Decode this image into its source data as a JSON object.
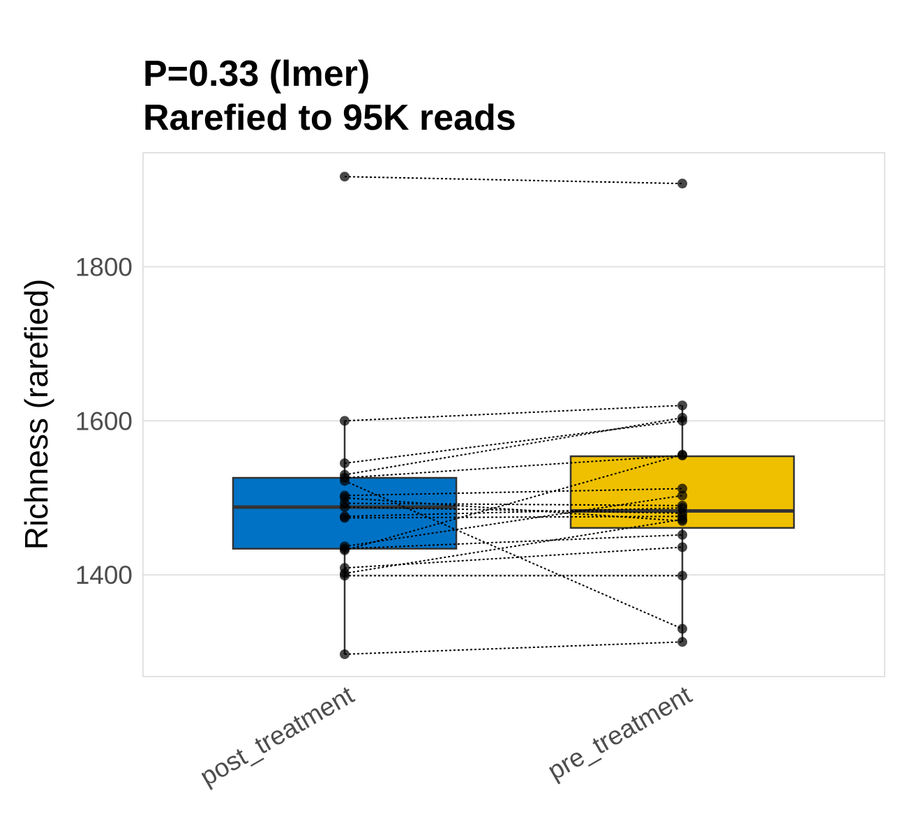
{
  "chart_data": {
    "type": "box",
    "title_line1": "P=0.33 (lmer)",
    "title_line2": "Rarefied to 95K reads",
    "xlabel": "",
    "ylabel": "Richness (rarefied)",
    "categories": [
      "post_treatment",
      "pre_treatment"
    ],
    "ylim": [
      1268,
      1948
    ],
    "yticks": [
      1400,
      1600,
      1800
    ],
    "grid": true,
    "colors": {
      "post_treatment": "#0072c5",
      "pre_treatment": "#efc000"
    },
    "boxes": [
      {
        "category": "post_treatment",
        "whisker_low": 1297,
        "q1": 1434,
        "median": 1488,
        "q3": 1526,
        "whisker_high": 1600
      },
      {
        "category": "pre_treatment",
        "whisker_low": 1313,
        "q1": 1461,
        "median": 1483,
        "q3": 1554,
        "whisker_high": 1620
      }
    ],
    "pairs": [
      {
        "post": 1917,
        "pre": 1908
      },
      {
        "post": 1600,
        "pre": 1620
      },
      {
        "post": 1545,
        "pre": 1600
      },
      {
        "post": 1530,
        "pre": 1604
      },
      {
        "post": 1526,
        "pre": 1555
      },
      {
        "post": 1522,
        "pre": 1330
      },
      {
        "post": 1503,
        "pre": 1512
      },
      {
        "post": 1500,
        "pre": 1470
      },
      {
        "post": 1493,
        "pre": 1490
      },
      {
        "post": 1488,
        "pre": 1480
      },
      {
        "post": 1476,
        "pre": 1487
      },
      {
        "post": 1474,
        "pre": 1476
      },
      {
        "post": 1437,
        "pre": 1503
      },
      {
        "post": 1434,
        "pre": 1452
      },
      {
        "post": 1432,
        "pre": 1556
      },
      {
        "post": 1409,
        "pre": 1436
      },
      {
        "post": 1402,
        "pre": 1472
      },
      {
        "post": 1399,
        "pre": 1399
      },
      {
        "post": 1297,
        "pre": 1313
      }
    ]
  }
}
